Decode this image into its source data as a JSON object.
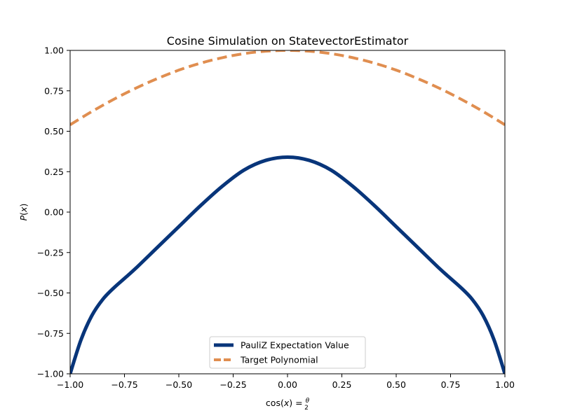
{
  "chart_data": {
    "type": "line",
    "title": "Cosine Simulation on StatevectorEstimator",
    "xlabel": "cos(x) = θ/2",
    "ylabel": "P(x)",
    "xlim": [
      -1.0,
      1.0
    ],
    "ylim": [
      -1.0,
      1.0
    ],
    "xticks": [
      -1.0,
      -0.75,
      -0.5,
      -0.25,
      0.0,
      0.25,
      0.5,
      0.75,
      1.0
    ],
    "xtick_labels": [
      "−1.00",
      "−0.75",
      "−0.50",
      "−0.25",
      "0.00",
      "0.25",
      "0.50",
      "0.75",
      "1.00"
    ],
    "yticks": [
      -1.0,
      -0.75,
      -0.5,
      -0.25,
      0.0,
      0.25,
      0.5,
      0.75,
      1.0
    ],
    "ytick_labels": [
      "−1.00",
      "−0.75",
      "−0.50",
      "−0.25",
      "0.00",
      "0.25",
      "0.50",
      "0.75",
      "1.00"
    ],
    "grid": false,
    "legend_position": "bottom-center",
    "series": [
      {
        "name": "PauliZ Expectation Value",
        "color": "#08357a",
        "style": "solid",
        "x": [
          -1.0,
          -0.95,
          -0.9,
          -0.85,
          -0.8,
          -0.75,
          -0.7,
          -0.6,
          -0.5,
          -0.4,
          -0.3,
          -0.2,
          -0.1,
          0.0,
          0.1,
          0.2,
          0.3,
          0.4,
          0.5,
          0.6,
          0.7,
          0.75,
          0.8,
          0.85,
          0.9,
          0.95,
          1.0
        ],
        "y": [
          -1.0,
          -0.79,
          -0.64,
          -0.54,
          -0.47,
          -0.41,
          -0.35,
          -0.22,
          -0.09,
          0.04,
          0.16,
          0.26,
          0.32,
          0.34,
          0.32,
          0.26,
          0.16,
          0.04,
          -0.09,
          -0.22,
          -0.35,
          -0.41,
          -0.47,
          -0.54,
          -0.64,
          -0.79,
          -1.0
        ]
      },
      {
        "name": "Target Polynomial",
        "color": "#e08e50",
        "style": "dashed",
        "x": [
          -1.0,
          -0.9,
          -0.8,
          -0.7,
          -0.6,
          -0.5,
          -0.4,
          -0.3,
          -0.2,
          -0.1,
          0.0,
          0.1,
          0.2,
          0.3,
          0.4,
          0.5,
          0.6,
          0.7,
          0.8,
          0.9,
          1.0
        ],
        "y": [
          0.54,
          0.622,
          0.697,
          0.765,
          0.825,
          0.878,
          0.921,
          0.955,
          0.98,
          0.995,
          1.0,
          0.995,
          0.98,
          0.955,
          0.921,
          0.878,
          0.825,
          0.765,
          0.697,
          0.622,
          0.54
        ]
      }
    ]
  }
}
